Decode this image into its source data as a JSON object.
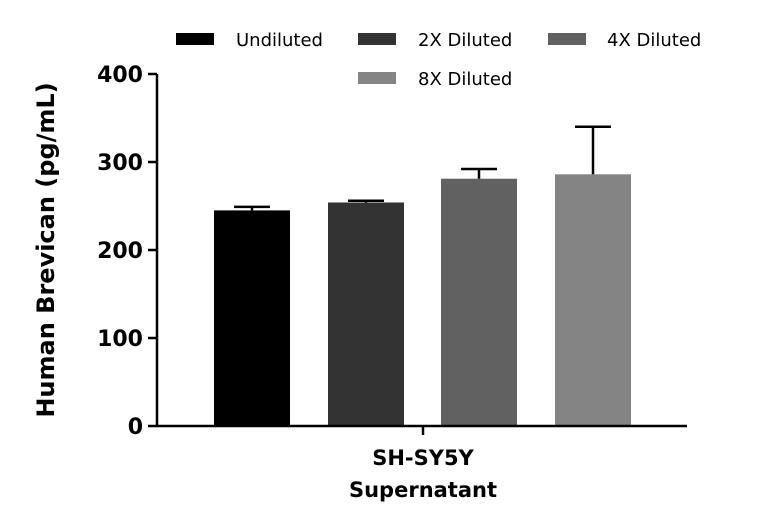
{
  "chart_data": {
    "type": "bar",
    "title": "",
    "ylabel": "Human Brevican (pg/mL)",
    "xlabel_lines": [
      "SH-SY5Y",
      "Supernatant"
    ],
    "ylim": [
      0,
      400
    ],
    "yticks": [
      0,
      100,
      200,
      300,
      400
    ],
    "legend_position": "top",
    "series": [
      {
        "name": "Undiluted",
        "value": 245,
        "error": 4,
        "color": "#000000"
      },
      {
        "name": "2X Diluted",
        "value": 254,
        "error": 2,
        "color": "#333333"
      },
      {
        "name": "4X Diluted",
        "value": 281,
        "error": 11,
        "color": "#616161"
      },
      {
        "name": "8X Diluted",
        "value": 286,
        "error": 54,
        "color": "#848484"
      }
    ]
  }
}
